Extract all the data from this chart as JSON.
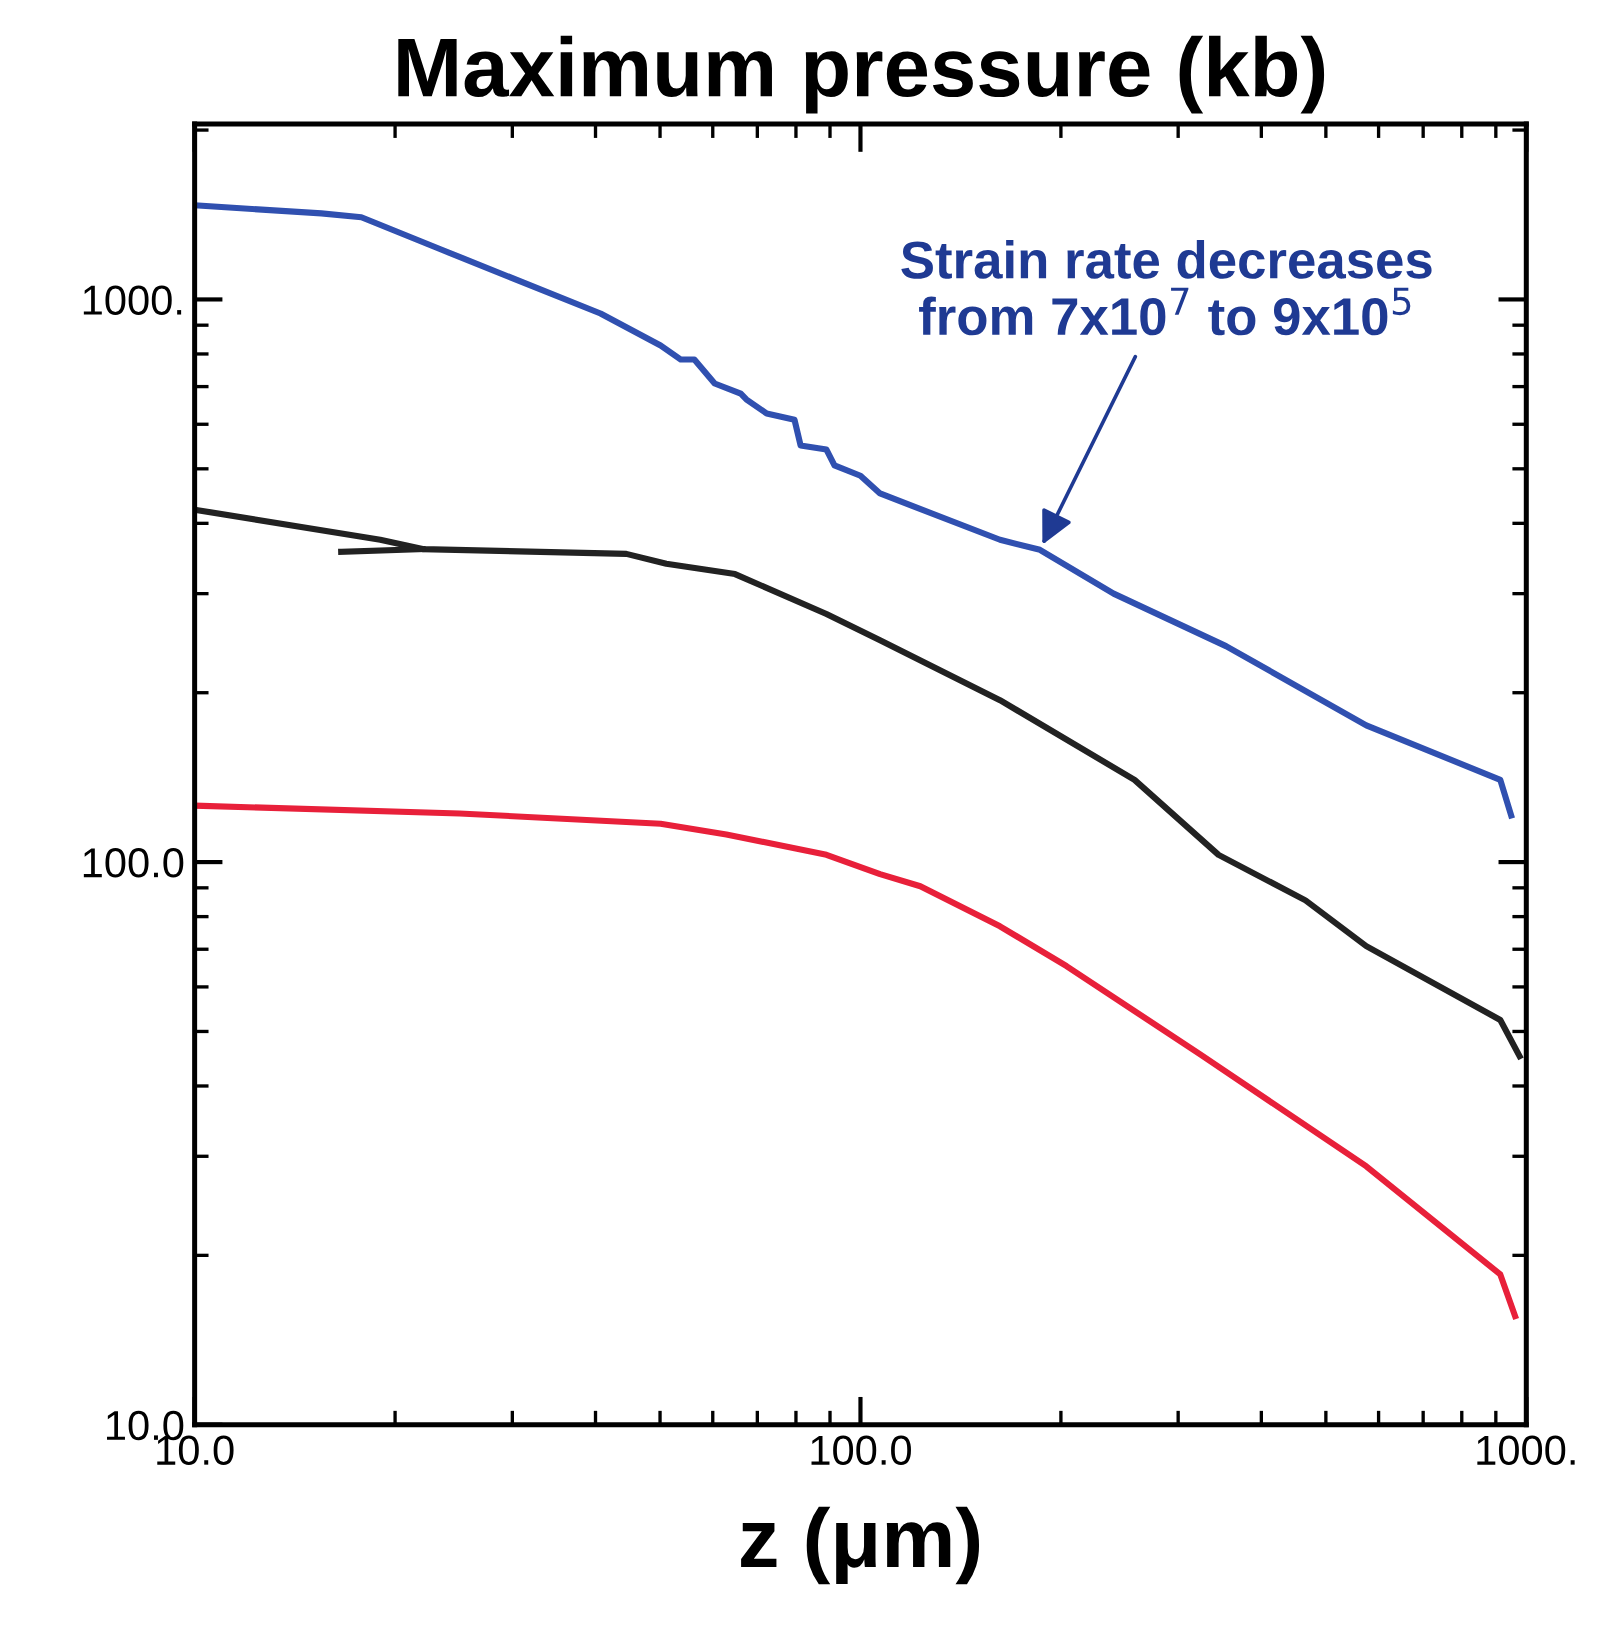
{
  "chart_data": {
    "type": "line",
    "title": "Maximum pressure (kb)",
    "xlabel": "z (μm)",
    "log": "xy",
    "xlim": [
      10,
      1000
    ],
    "ylim": [
      10,
      2050
    ],
    "xticks": [
      {
        "value": 10,
        "label": "10.0"
      },
      {
        "value": 100,
        "label": "100.0"
      },
      {
        "value": 1000,
        "label": "1000."
      }
    ],
    "yticks": [
      {
        "value": 10,
        "label": "10.0"
      },
      {
        "value": 100,
        "label": "100.0"
      },
      {
        "value": 1000,
        "label": "1000."
      }
    ],
    "grid": false,
    "legend": false,
    "marker": "none",
    "line_style": "solid",
    "annotations": [
      {
        "text": "Strain rate decreases\nfrom 7x10$^{7}$ to 9x10$^{5}$",
        "x": 186,
        "y": 359
      }
    ],
    "series": [
      {
        "color": "#3050b0",
        "x": [
          10,
          15.5,
          17.8,
          23.4,
          40.7,
          50.1,
          53.7,
          56.3,
          60.4,
          66.1,
          67.4,
          72.3,
          79.6,
          81.3,
          88.9,
          91.4,
          100,
          107,
          162,
          186,
          240,
          354,
          575,
          914,
          949
        ],
        "values": [
          1470,
          1422,
          1400,
          1228,
          944,
          828,
          782,
          782,
          709,
          680,
          664,
          627,
          611,
          550,
          541,
          507,
          486,
          452,
          374,
          359,
          300,
          242,
          175,
          140,
          121
        ]
      },
      {
        "color": "#222222",
        "x": [
          10,
          19.0,
          22,
          44.5,
          51.1,
          64.8,
          88.9,
          107,
          162,
          258,
          345,
          466,
          575,
          914,
          977
        ],
        "values": [
          423,
          374,
          360,
          353,
          339,
          325,
          276,
          248,
          194,
          140,
          103,
          85.5,
          70.9,
          52.4,
          45.2
        ]
      },
      {
        "color": "#222222",
        "x": [
          16.6,
          22
        ],
        "values": [
          356,
          360
        ]
      },
      {
        "color": "#e8203a",
        "x": [
          10,
          25,
          50.1,
          62.9,
          88.9,
          107,
          123,
          162,
          204,
          324,
          575,
          914,
          962
        ],
        "values": [
          126,
          122,
          117,
          112,
          103,
          95.2,
          90.6,
          76.9,
          65.3,
          45.5,
          28.8,
          18.5,
          15.6
        ]
      }
    ]
  }
}
